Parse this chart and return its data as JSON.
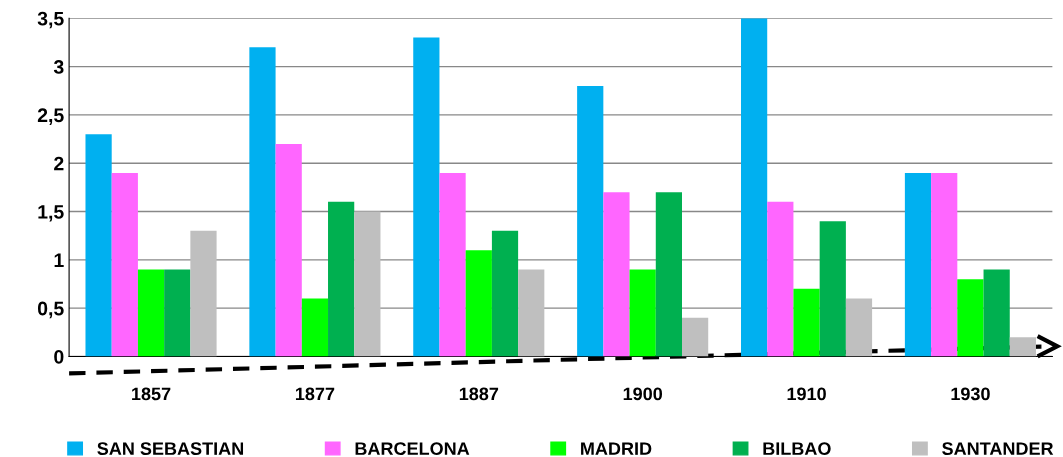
{
  "chart_data": {
    "type": "bar",
    "categories": [
      "1857",
      "1877",
      "1887",
      "1900",
      "1910",
      "1930"
    ],
    "series": [
      {
        "name": "SAN SEBASTIAN",
        "color": "#00b0f0",
        "values": [
          2.3,
          3.2,
          3.3,
          2.8,
          3.5,
          1.9
        ]
      },
      {
        "name": "BARCELONA",
        "color": "#ff66ff",
        "values": [
          1.9,
          2.2,
          1.9,
          1.7,
          1.6,
          1.9
        ]
      },
      {
        "name": "MADRID",
        "color": "#00ff00",
        "values": [
          0.9,
          0.6,
          1.1,
          0.9,
          0.7,
          0.8
        ]
      },
      {
        "name": "BILBAO",
        "color": "#00b050",
        "values": [
          0.9,
          1.6,
          1.3,
          1.7,
          1.4,
          0.9
        ]
      },
      {
        "name": "SANTANDER",
        "color": "#bfbfbf",
        "values": [
          1.3,
          1.5,
          0.9,
          0.4,
          0.6,
          0.2
        ]
      }
    ],
    "ylim": [
      0,
      3.5
    ],
    "yticks": [
      0,
      {
        "value": 0.5,
        "label": "0,5"
      },
      1,
      {
        "value": 1.5,
        "label": "1,5"
      },
      2,
      {
        "value": 2.5,
        "label": "2,5"
      },
      3,
      {
        "value": 3.5,
        "label": "3,5"
      }
    ],
    "grid": "y",
    "legend": "bottom"
  }
}
